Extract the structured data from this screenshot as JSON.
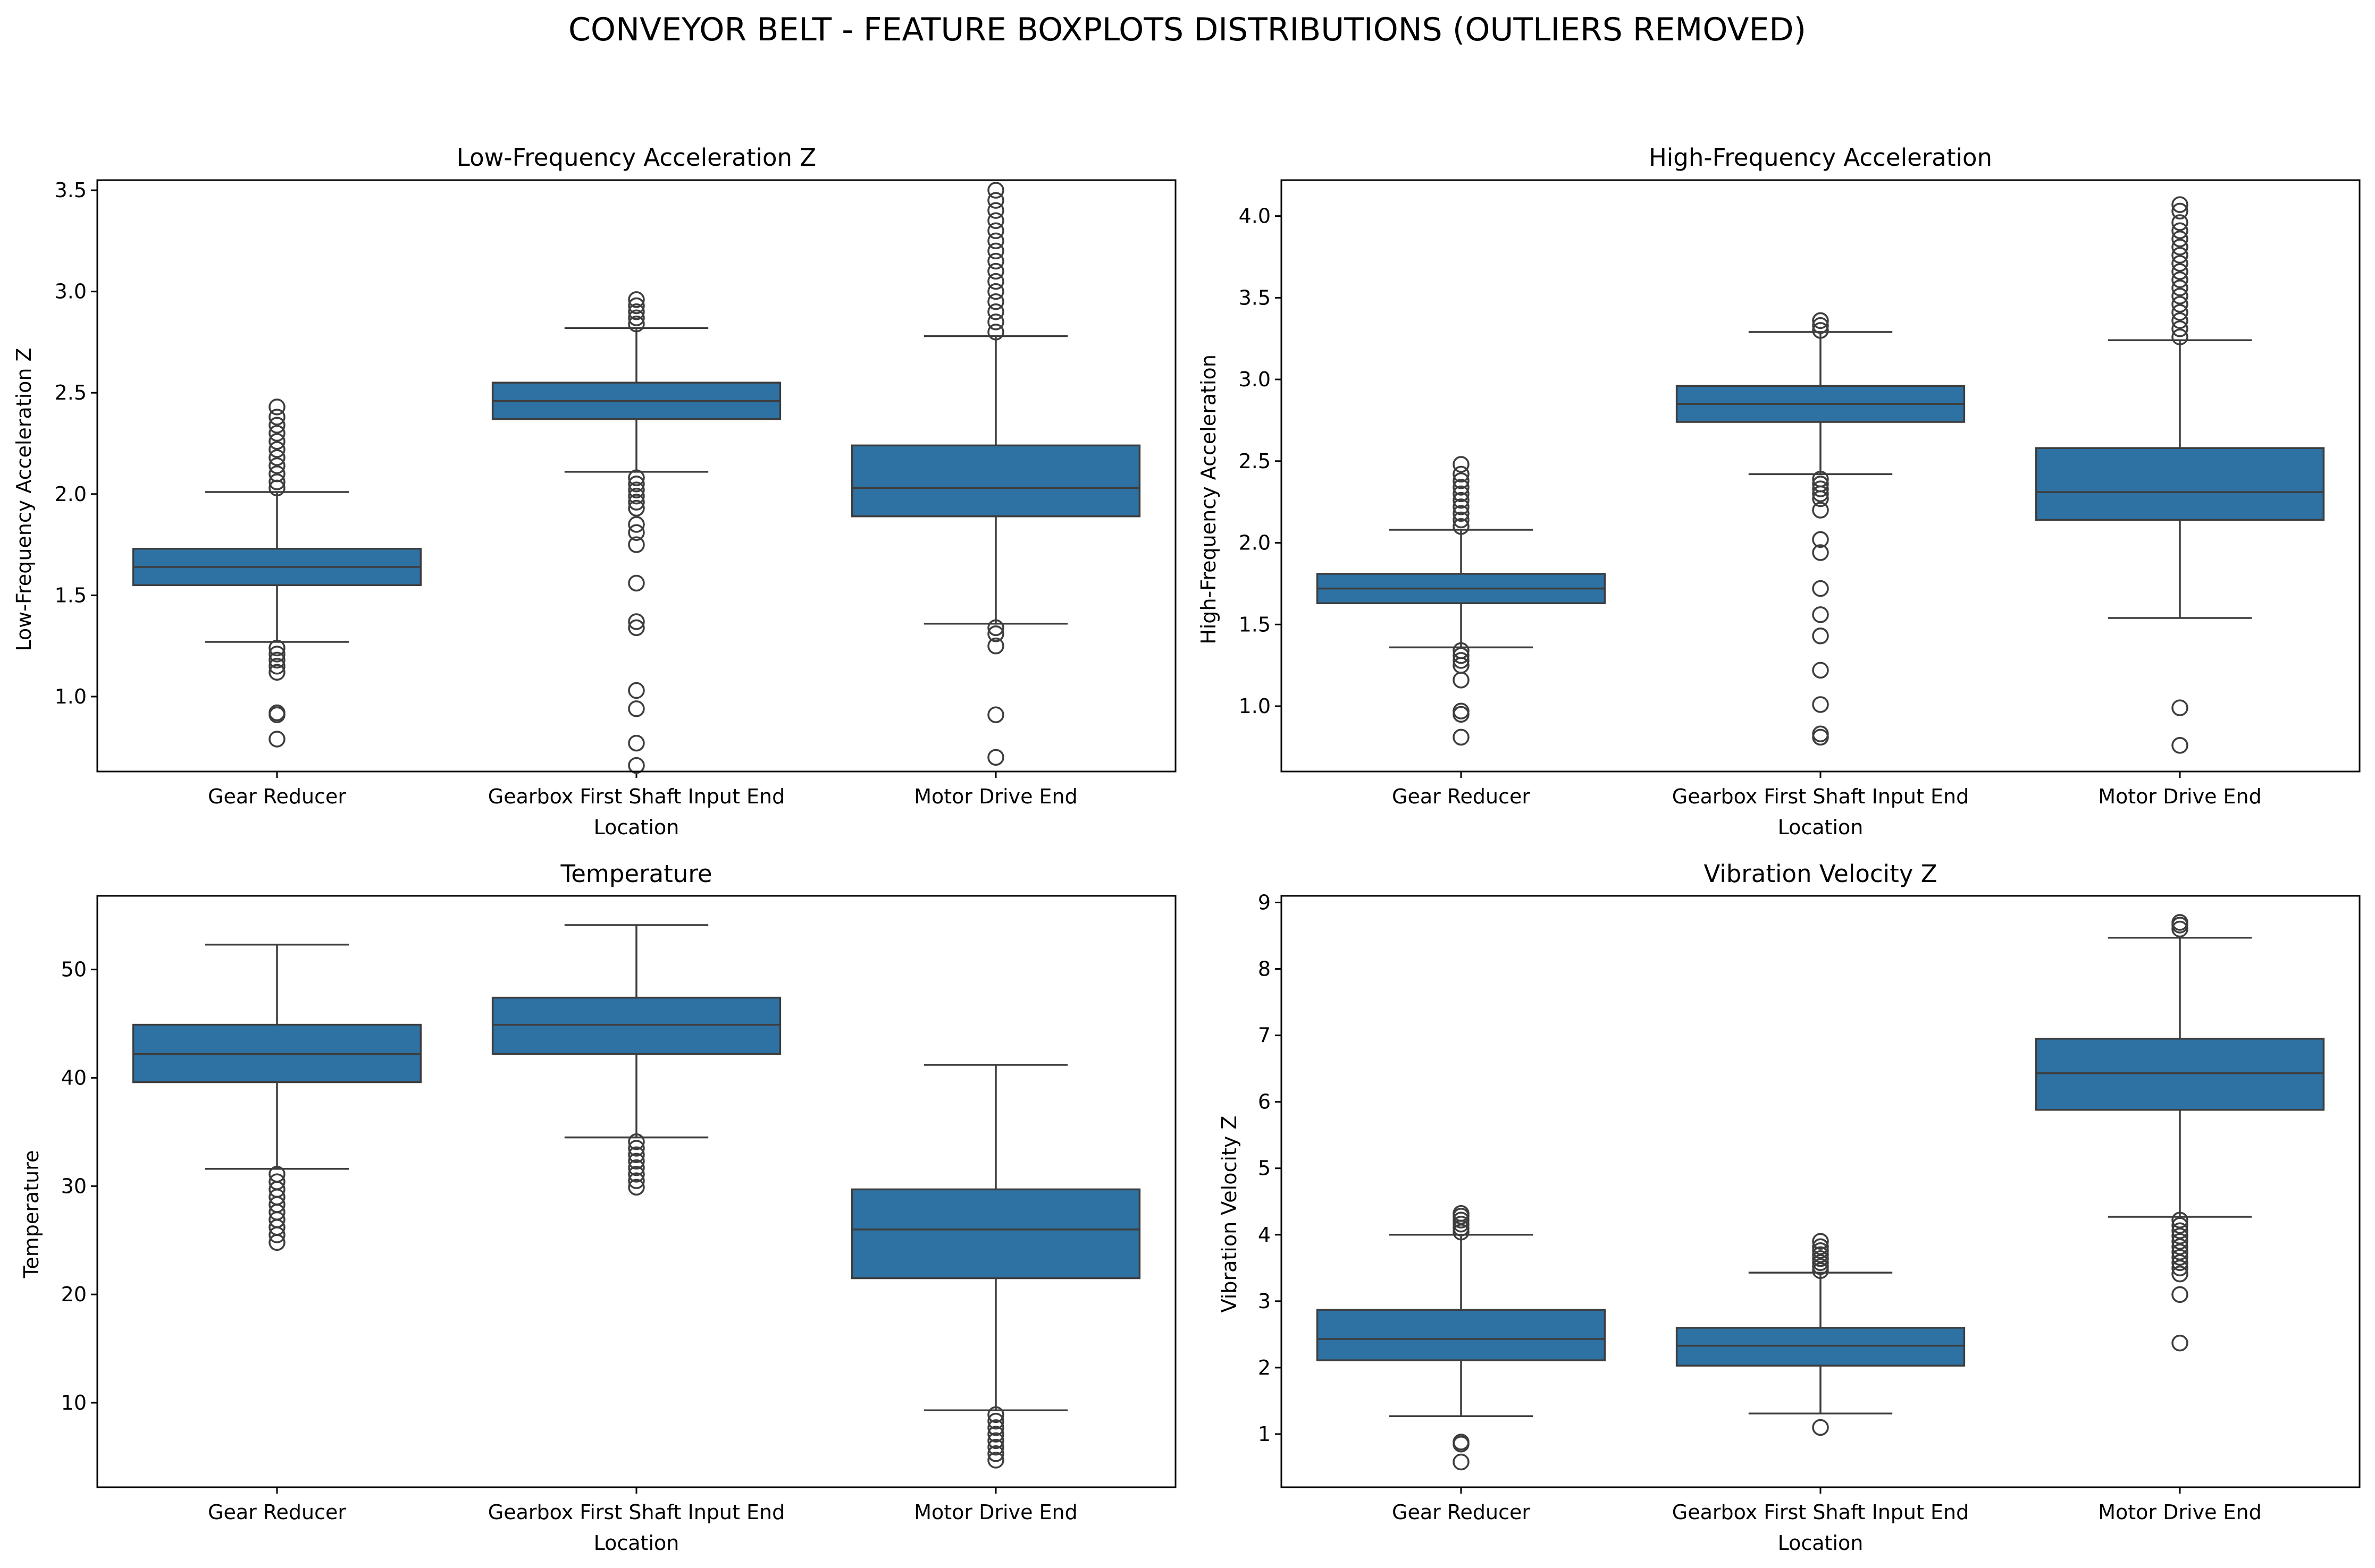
{
  "figure": {
    "title": "CONVEYOR BELT - FEATURE BOXPLOTS DISTRIBUTIONS (OUTLIERS REMOVED)",
    "box_color": "#2e71a3",
    "line_color": "#3d3d3d"
  },
  "chart_data": [
    {
      "type": "box",
      "title": "Low-Frequency Acceleration Z",
      "xlabel": "Location",
      "ylabel": "Low-Frequency Acceleration Z",
      "ylim": [
        0.63,
        3.55
      ],
      "yticks": [
        1.0,
        1.5,
        2.0,
        2.5,
        3.0,
        3.5
      ],
      "ytick_labels": [
        "1.0",
        "1.5",
        "2.0",
        "2.5",
        "3.0",
        "3.5"
      ],
      "categories": [
        "Gear Reducer",
        "Gearbox First Shaft Input End",
        "Motor Drive End"
      ],
      "boxes": [
        {
          "whislo": 1.27,
          "q1": 1.55,
          "med": 1.64,
          "q3": 1.73,
          "whishi": 2.01,
          "fliers": [
            0.79,
            0.91,
            0.92,
            1.12,
            1.15,
            1.18,
            1.21,
            1.24,
            2.03,
            2.06,
            2.1,
            2.14,
            2.18,
            2.22,
            2.26,
            2.3,
            2.34,
            2.38,
            2.43
          ]
        },
        {
          "whislo": 2.11,
          "q1": 2.37,
          "med": 2.46,
          "q3": 2.55,
          "whishi": 2.82,
          "fliers": [
            0.66,
            0.77,
            0.94,
            1.03,
            1.34,
            1.37,
            1.56,
            1.75,
            1.81,
            1.85,
            1.93,
            1.96,
            1.99,
            2.02,
            2.05,
            2.08,
            2.84,
            2.87,
            2.9,
            2.93,
            2.96
          ]
        },
        {
          "whislo": 1.36,
          "q1": 1.89,
          "med": 2.03,
          "q3": 2.24,
          "whishi": 2.78,
          "fliers": [
            0.7,
            0.91,
            1.25,
            1.31,
            1.34,
            2.8,
            2.85,
            2.9,
            2.95,
            3.0,
            3.05,
            3.1,
            3.15,
            3.2,
            3.25,
            3.3,
            3.35,
            3.4,
            3.45,
            3.5
          ]
        }
      ]
    },
    {
      "type": "box",
      "title": "High-Frequency Acceleration",
      "xlabel": "Location",
      "ylabel": "High-Frequency Acceleration",
      "ylim": [
        0.6,
        4.22
      ],
      "yticks": [
        1.0,
        1.5,
        2.0,
        2.5,
        3.0,
        3.5,
        4.0
      ],
      "ytick_labels": [
        "1.0",
        "1.5",
        "2.0",
        "2.5",
        "3.0",
        "3.5",
        "4.0"
      ],
      "categories": [
        "Gear Reducer",
        "Gearbox First Shaft Input End",
        "Motor Drive End"
      ],
      "boxes": [
        {
          "whislo": 1.36,
          "q1": 1.63,
          "med": 1.72,
          "q3": 1.81,
          "whishi": 2.08,
          "fliers": [
            0.81,
            0.95,
            0.97,
            1.16,
            1.25,
            1.28,
            1.31,
            1.34,
            2.1,
            2.14,
            2.18,
            2.22,
            2.26,
            2.3,
            2.34,
            2.38,
            2.42,
            2.48
          ]
        },
        {
          "whislo": 2.42,
          "q1": 2.74,
          "med": 2.85,
          "q3": 2.96,
          "whishi": 3.29,
          "fliers": [
            0.81,
            0.83,
            1.01,
            1.22,
            1.43,
            1.56,
            1.72,
            1.94,
            2.02,
            2.2,
            2.27,
            2.3,
            2.33,
            2.36,
            2.39,
            3.3,
            3.33,
            3.36
          ]
        },
        {
          "whislo": 1.54,
          "q1": 2.14,
          "med": 2.31,
          "q3": 2.58,
          "whishi": 3.24,
          "fliers": [
            0.76,
            0.99,
            3.26,
            3.31,
            3.36,
            3.41,
            3.46,
            3.51,
            3.56,
            3.61,
            3.66,
            3.71,
            3.76,
            3.81,
            3.86,
            3.91,
            3.96,
            4.03,
            4.07
          ]
        }
      ]
    },
    {
      "type": "box",
      "title": "Temperature",
      "xlabel": "Location",
      "ylabel": "Temperature",
      "ylim": [
        2.2,
        56.8
      ],
      "yticks": [
        10,
        20,
        30,
        40,
        50
      ],
      "ytick_labels": [
        "10",
        "20",
        "30",
        "40",
        "50"
      ],
      "categories": [
        "Gear Reducer",
        "Gearbox First Shaft Input End",
        "Motor Drive End"
      ],
      "boxes": [
        {
          "whislo": 31.6,
          "q1": 39.6,
          "med": 42.2,
          "q3": 44.9,
          "whishi": 52.3,
          "fliers": [
            24.8,
            25.5,
            26.2,
            26.9,
            27.6,
            28.3,
            29.0,
            29.7,
            30.4,
            31.1
          ]
        },
        {
          "whislo": 34.5,
          "q1": 42.2,
          "med": 44.9,
          "q3": 47.4,
          "whishi": 54.1,
          "fliers": [
            29.9,
            30.5,
            31.1,
            31.7,
            32.3,
            32.9,
            33.5,
            34.1
          ]
        },
        {
          "whislo": 9.3,
          "q1": 21.5,
          "med": 26.0,
          "q3": 29.7,
          "whishi": 41.2,
          "fliers": [
            4.7,
            5.3,
            5.9,
            6.5,
            7.1,
            7.7,
            8.3,
            8.9
          ]
        }
      ]
    },
    {
      "type": "box",
      "title": "Vibration Velocity Z",
      "xlabel": "Location",
      "ylabel": "Vibration Velocity Z",
      "ylim": [
        0.2,
        9.1
      ],
      "yticks": [
        1,
        2,
        3,
        4,
        5,
        6,
        7,
        8,
        9
      ],
      "ytick_labels": [
        "1",
        "2",
        "3",
        "4",
        "5",
        "6",
        "7",
        "8",
        "9"
      ],
      "categories": [
        "Gear Reducer",
        "Gearbox First Shaft Input End",
        "Motor Drive End"
      ],
      "boxes": [
        {
          "whislo": 1.27,
          "q1": 2.11,
          "med": 2.43,
          "q3": 2.87,
          "whishi": 4.0,
          "fliers": [
            0.58,
            0.85,
            0.88,
            4.04,
            4.1,
            4.16,
            4.22,
            4.28,
            4.32
          ]
        },
        {
          "whislo": 1.31,
          "q1": 2.03,
          "med": 2.33,
          "q3": 2.6,
          "whishi": 3.43,
          "fliers": [
            1.1,
            3.46,
            3.52,
            3.58,
            3.64,
            3.7,
            3.76,
            3.82,
            3.9
          ]
        },
        {
          "whislo": 4.27,
          "q1": 5.88,
          "med": 6.43,
          "q3": 6.95,
          "whishi": 8.47,
          "fliers": [
            2.37,
            3.1,
            3.41,
            3.5,
            3.58,
            3.66,
            3.74,
            3.82,
            3.9,
            3.98,
            4.06,
            4.14,
            4.22,
            8.6,
            8.66,
            8.7
          ]
        }
      ]
    }
  ]
}
